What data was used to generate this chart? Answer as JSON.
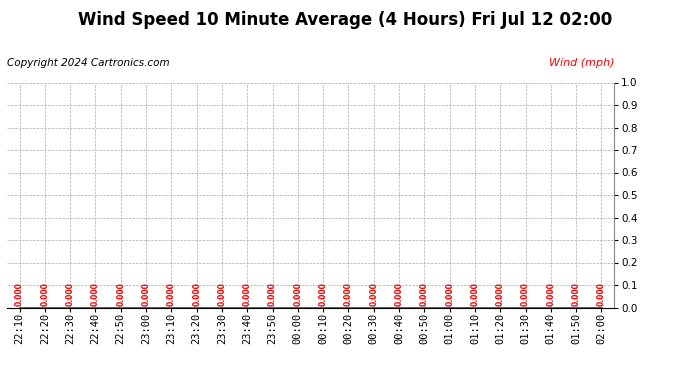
{
  "title": "Wind Speed 10 Minute Average (4 Hours) Fri Jul 12 02:00",
  "ylabel": "Wind (mph)",
  "copyright": "Copyright 2024 Cartronics.com",
  "wind_color": "#ff0000",
  "bg_color": "#ffffff",
  "grid_color": "#aaaaaa",
  "ylim": [
    0.0,
    1.0
  ],
  "yticks": [
    0.0,
    0.1,
    0.2,
    0.3,
    0.4,
    0.5,
    0.6,
    0.7,
    0.8,
    0.9,
    1.0
  ],
  "xtick_labels": [
    "22:10",
    "22:20",
    "22:30",
    "22:40",
    "22:50",
    "23:00",
    "23:10",
    "23:20",
    "23:30",
    "23:40",
    "23:50",
    "00:00",
    "00:10",
    "00:20",
    "00:30",
    "00:40",
    "00:50",
    "01:00",
    "01:10",
    "01:20",
    "01:30",
    "01:40",
    "01:50",
    "02:00"
  ],
  "wind_values": [
    0.0,
    0.0,
    0.0,
    0.0,
    0.0,
    0.0,
    0.0,
    0.0,
    0.0,
    0.0,
    0.0,
    0.0,
    0.0,
    0.0,
    0.0,
    0.0,
    0.0,
    0.0,
    0.0,
    0.0,
    0.0,
    0.0,
    0.0,
    0.0
  ],
  "title_fontsize": 12,
  "label_fontsize": 8,
  "tick_fontsize": 7.5,
  "copyright_fontsize": 7.5,
  "value_label_fontsize": 5.5
}
